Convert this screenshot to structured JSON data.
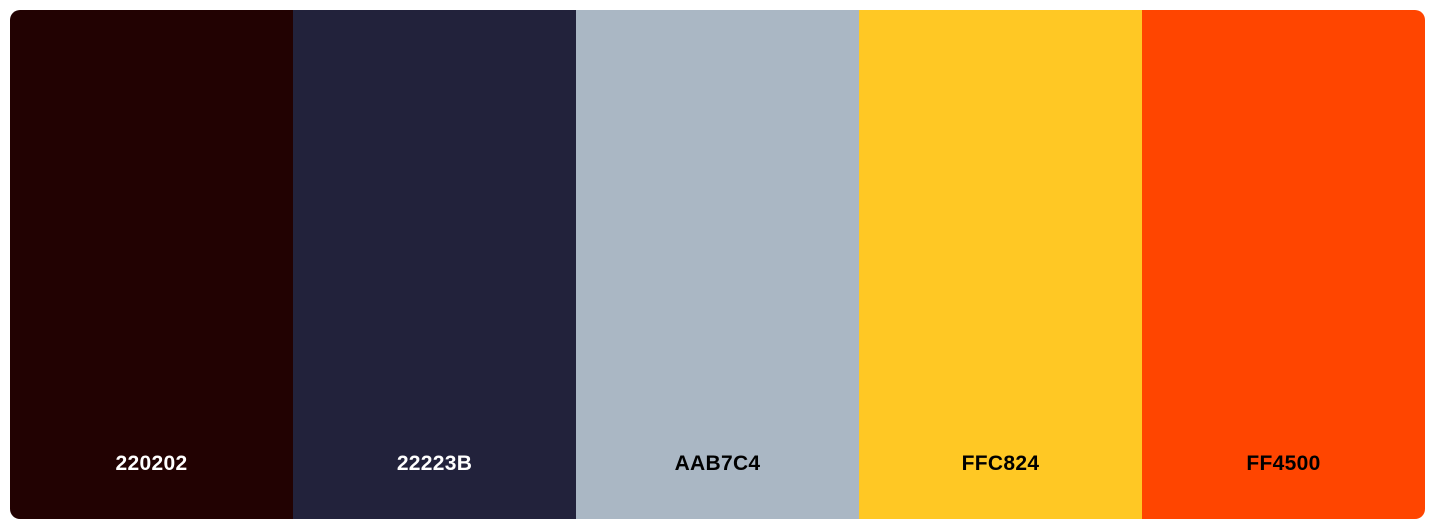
{
  "palette": {
    "swatches": [
      {
        "hex": "220202",
        "color": "#220202",
        "text_color": "#ffffff"
      },
      {
        "hex": "22223B",
        "color": "#22223B",
        "text_color": "#ffffff"
      },
      {
        "hex": "AAB7C4",
        "color": "#AAB7C4",
        "text_color": "#000000"
      },
      {
        "hex": "FFC824",
        "color": "#FFC824",
        "text_color": "#000000"
      },
      {
        "hex": "FF4500",
        "color": "#FF4500",
        "text_color": "#000000"
      }
    ]
  }
}
